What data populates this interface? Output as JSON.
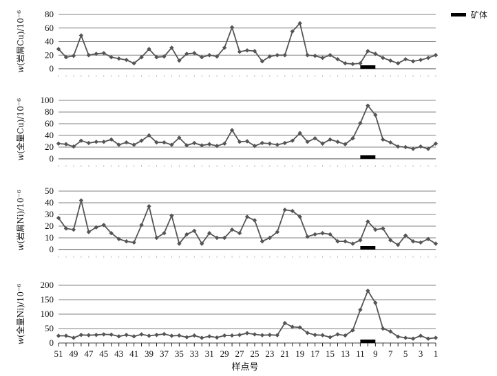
{
  "x_axis": {
    "label": "样点号",
    "tick_labels": [
      "51",
      "49",
      "47",
      "45",
      "43",
      "41",
      "39",
      "37",
      "35",
      "33",
      "31",
      "29",
      "27",
      "25",
      "23",
      "21",
      "19",
      "17",
      "15",
      "13",
      "11",
      "9",
      "7",
      "5",
      "3",
      "1"
    ]
  },
  "legend": {
    "label": "矿体",
    "color": "#000000"
  },
  "colors": {
    "line": "#555555",
    "marker": "#555555",
    "grid": "#808080",
    "ore": "#000000"
  },
  "chart_data": [
    {
      "type": "line",
      "ylabel_prefix": "w",
      "ylabel": "(岩屑Cu)/10⁻⁶",
      "ylim": [
        0,
        80
      ],
      "yticks": [
        0,
        20,
        40,
        60,
        80
      ],
      "x": [
        51,
        50,
        49,
        48,
        47,
        46,
        45,
        44,
        43,
        42,
        41,
        40,
        39,
        38,
        37,
        36,
        35,
        34,
        33,
        32,
        31,
        30,
        29,
        28,
        27,
        26,
        25,
        24,
        23,
        22,
        21,
        20,
        19,
        18,
        17,
        16,
        15,
        14,
        13,
        12,
        11,
        10,
        9,
        8,
        7,
        6,
        5,
        4,
        3,
        2,
        1
      ],
      "values": [
        29,
        17,
        19,
        49,
        20,
        22,
        23,
        17,
        15,
        13,
        8,
        17,
        29,
        17,
        18,
        31,
        12,
        22,
        23,
        17,
        20,
        18,
        31,
        61,
        25,
        27,
        26,
        11,
        18,
        20,
        20,
        55,
        67,
        20,
        19,
        16,
        20,
        14,
        8,
        7,
        8,
        26,
        22,
        16,
        12,
        8,
        14,
        11,
        13,
        16,
        20
      ],
      "ore_body": [
        11,
        9
      ]
    },
    {
      "type": "line",
      "ylabel_prefix": "w",
      "ylabel": "(全量Cu)/10⁻⁶",
      "ylim": [
        0,
        100
      ],
      "yticks": [
        0,
        20,
        40,
        60,
        80,
        100
      ],
      "x": [
        51,
        50,
        49,
        48,
        47,
        46,
        45,
        44,
        43,
        42,
        41,
        40,
        39,
        38,
        37,
        36,
        35,
        34,
        33,
        32,
        31,
        30,
        29,
        28,
        27,
        26,
        25,
        24,
        23,
        22,
        21,
        20,
        19,
        18,
        17,
        16,
        15,
        14,
        13,
        12,
        11,
        10,
        9,
        8,
        7,
        6,
        5,
        4,
        3,
        2,
        1
      ],
      "values": [
        26,
        25,
        21,
        31,
        27,
        29,
        29,
        33,
        24,
        28,
        24,
        31,
        40,
        28,
        28,
        24,
        36,
        23,
        27,
        23,
        25,
        22,
        26,
        49,
        29,
        30,
        22,
        27,
        26,
        24,
        27,
        31,
        44,
        29,
        35,
        26,
        33,
        29,
        25,
        35,
        61,
        91,
        75,
        33,
        28,
        21,
        20,
        17,
        21,
        17,
        26
      ],
      "ore_body": [
        11,
        9
      ]
    },
    {
      "type": "line",
      "ylabel_prefix": "w",
      "ylabel": "(岩屑Ni)/10⁻⁶",
      "ylim": [
        0,
        50
      ],
      "yticks": [
        0,
        10,
        20,
        30,
        40,
        50
      ],
      "x": [
        51,
        50,
        49,
        48,
        47,
        46,
        45,
        44,
        43,
        42,
        41,
        40,
        39,
        38,
        37,
        36,
        35,
        34,
        33,
        32,
        31,
        30,
        29,
        28,
        27,
        26,
        25,
        24,
        23,
        22,
        21,
        20,
        19,
        18,
        17,
        16,
        15,
        14,
        13,
        12,
        11,
        10,
        9,
        8,
        7,
        6,
        5,
        4,
        3,
        2,
        1
      ],
      "values": [
        27,
        18,
        17,
        42,
        15,
        19,
        21,
        14,
        9,
        7,
        6,
        21,
        37,
        10,
        14,
        29,
        5,
        13,
        16,
        5,
        14,
        10,
        10,
        17,
        14,
        28,
        25,
        7,
        10,
        15,
        34,
        33,
        28,
        11,
        13,
        14,
        13,
        7,
        7,
        5,
        8,
        24,
        17,
        18,
        8,
        4,
        12,
        7,
        6,
        9,
        5
      ],
      "ore_body": [
        11,
        9
      ]
    },
    {
      "type": "line",
      "ylabel_prefix": "w",
      "ylabel": "(全量Ni)/10⁻⁶",
      "ylim": [
        0,
        200
      ],
      "yticks": [
        0,
        50,
        100,
        150,
        200
      ],
      "x": [
        51,
        50,
        49,
        48,
        47,
        46,
        45,
        44,
        43,
        42,
        41,
        40,
        39,
        38,
        37,
        36,
        35,
        34,
        33,
        32,
        31,
        30,
        29,
        28,
        27,
        26,
        25,
        24,
        23,
        22,
        21,
        20,
        19,
        18,
        17,
        16,
        15,
        14,
        13,
        12,
        11,
        10,
        9,
        8,
        7,
        6,
        5,
        4,
        3,
        2,
        1
      ],
      "values": [
        25,
        25,
        18,
        28,
        27,
        28,
        30,
        29,
        23,
        28,
        23,
        30,
        25,
        28,
        31,
        25,
        26,
        20,
        26,
        18,
        23,
        19,
        26,
        26,
        28,
        34,
        30,
        27,
        28,
        27,
        69,
        56,
        54,
        35,
        28,
        27,
        20,
        30,
        26,
        44,
        115,
        181,
        139,
        50,
        40,
        22,
        18,
        15,
        25,
        15,
        18
      ],
      "ore_body": [
        11,
        9
      ]
    }
  ]
}
